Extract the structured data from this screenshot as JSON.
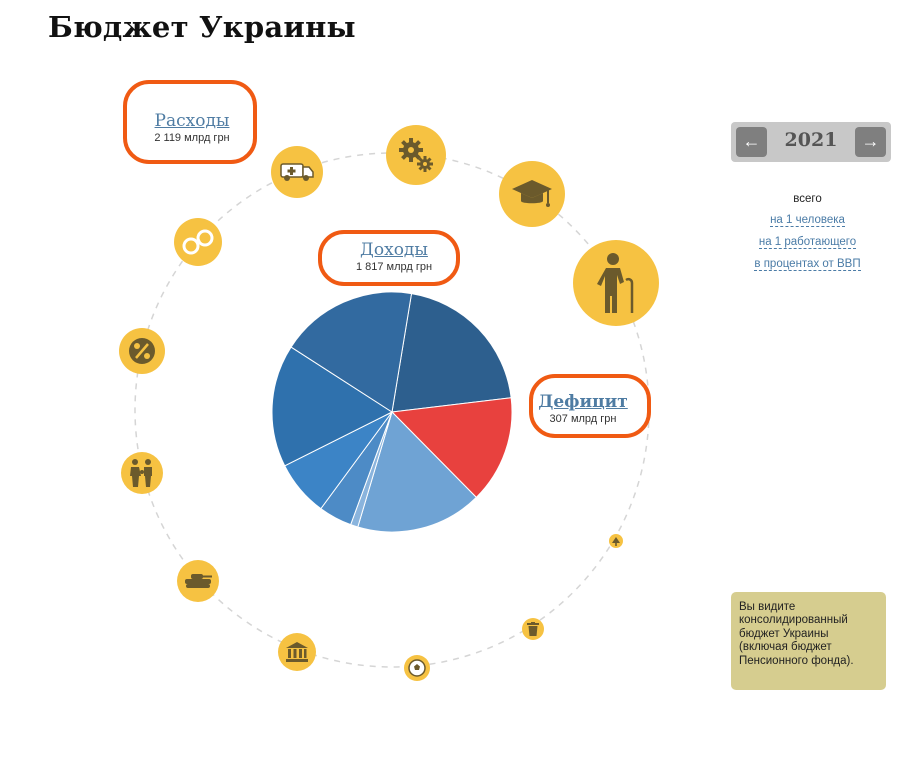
{
  "page": {
    "title": "Бюджет Украины"
  },
  "categories": {
    "expenses": {
      "label": "Расходы",
      "amount": "2 119 млрд грн"
    },
    "revenues": {
      "label": "Доходы",
      "amount": "1 817 млрд грн"
    },
    "deficit": {
      "label": "Дефицит",
      "amount": "307 млрд грн"
    }
  },
  "year": {
    "value": "2021",
    "prev_symbol": "←",
    "next_symbol": "→"
  },
  "view_modes": [
    {
      "label": "всего",
      "active": true
    },
    {
      "label": "на 1 человека",
      "active": false
    },
    {
      "label": "на 1 работающего",
      "active": false
    },
    {
      "label": "в процентах от ВВП",
      "active": false
    }
  ],
  "note": {
    "text": "Вы видите консолидированный бюджет Украины (включая бюджет Пенсионного фонда)."
  },
  "spending_icons": [
    "ambulance-icon",
    "gears-icon",
    "graduation-cap-icon",
    "elderly-person-icon",
    "handcuffs-icon",
    "tax-percent-icon",
    "family-icon",
    "tank-icon",
    "government-building-icon",
    "football-icon",
    "trash-can-icon",
    "tree-icon"
  ],
  "colors": {
    "accent_orange": "#f05a13",
    "icon_yellow": "#f6c242",
    "deficit_red": "#e8413e",
    "link_blue": "#4f7ca3",
    "note_bg": "#d6cd8f"
  },
  "chart_data": {
    "type": "pie",
    "series": [
      {
        "color": "#2d5f8e",
        "share": 0.205
      },
      {
        "color": "#e8413e",
        "share": 0.145
      },
      {
        "color": "#6fa3d4",
        "share": 0.17
      },
      {
        "color": "#8ab4dd",
        "share": 0.01
      },
      {
        "color": "#4d8bc6",
        "share": 0.045
      },
      {
        "color": "#3c84c6",
        "share": 0.075
      },
      {
        "color": "#2f71ad",
        "share": 0.165
      },
      {
        "color": "#326aa0",
        "share": 0.185
      }
    ]
  }
}
